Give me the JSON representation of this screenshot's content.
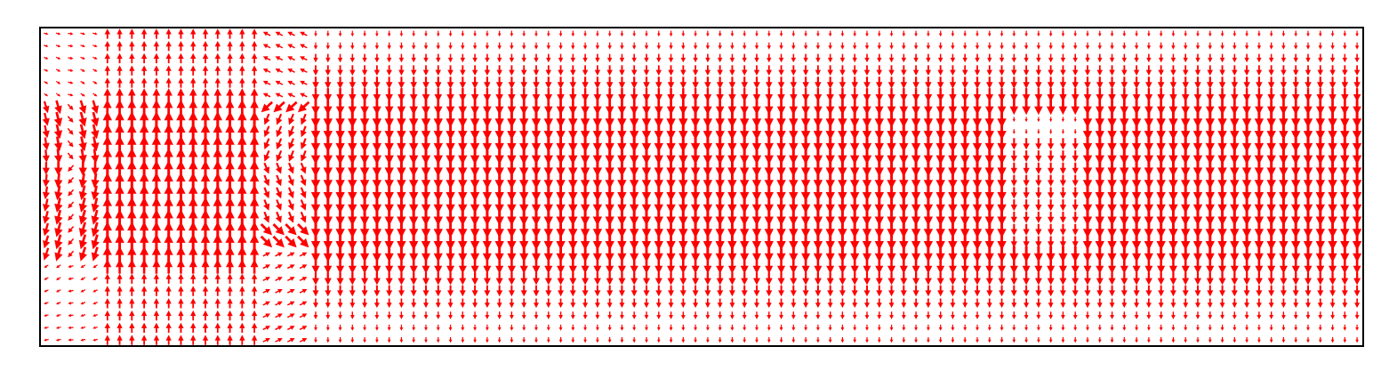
{
  "chart_data": {
    "type": "quiver",
    "title": "",
    "xlabel": "",
    "ylabel": "",
    "xlim": [
      0,
      1
    ],
    "ylim": [
      0,
      1
    ],
    "grid": false,
    "legend": "none",
    "ticks_visible": false,
    "arrow_color": "#ff0000",
    "frame_color": "#000000",
    "background_color": "#ffffff",
    "grid_columns": 108,
    "grid_rows": 26,
    "field": {
      "description_of_regions": [
        {
          "name": "upward-core",
          "x_range": [
            0.04,
            0.17
          ],
          "direction": "up",
          "peak_speed": 1.0
        },
        {
          "name": "left-vortex",
          "x_center": 0.03,
          "y_center": 0.56,
          "rotation": "counter-clockwise"
        },
        {
          "name": "right-vortex",
          "x_center": 0.18,
          "y_center": 0.56,
          "rotation": "clockwise"
        },
        {
          "name": "downward-channel",
          "x_range": [
            0.2,
            1.0
          ],
          "direction": "down",
          "peak_speed": 1.0
        },
        {
          "name": "slow-pocket",
          "x_range": [
            0.73,
            0.78
          ],
          "y_range": [
            0.32,
            0.66
          ],
          "speed_factor": 0.5
        }
      ],
      "band_y_range": [
        0.3,
        0.72
      ],
      "outer_speed": 0.35
    }
  }
}
